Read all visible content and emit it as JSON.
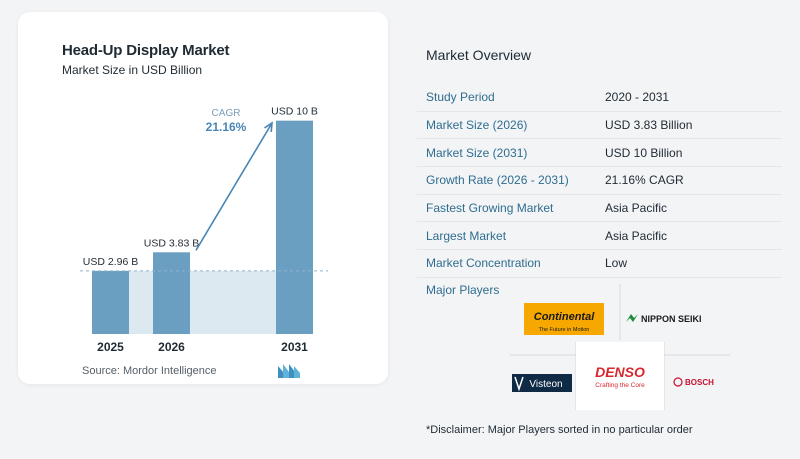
{
  "chart": {
    "title": "Head-Up Display Market",
    "subtitle": "Market Size in USD Billion",
    "cagr_label": "CAGR",
    "cagr_value": "21.16%",
    "source": "Source:  Mordor Intelligence",
    "colors": {
      "bar": "#6a9fc2",
      "bar_top": "#5a8fb5",
      "shade": "#dde9f1",
      "accent": "#4a86b5",
      "text": "#1f2a33"
    }
  },
  "chart_data": {
    "type": "bar",
    "title": "Head-Up Display Market",
    "subtitle": "Market Size in USD Billion",
    "categories": [
      "2025",
      "2026",
      "2031"
    ],
    "values": [
      2.96,
      3.83,
      10
    ],
    "data_labels": [
      "USD 2.96 B",
      "USD 3.83 B",
      "USD 10 B"
    ],
    "ylim": [
      0,
      10.5
    ],
    "grid": false,
    "annotation": {
      "label": "CAGR",
      "value": "21.16%"
    }
  },
  "overview": {
    "title": "Market Overview",
    "rows": [
      {
        "label": "Study Period",
        "value": "2020 - 2031"
      },
      {
        "label": "Market Size (2026)",
        "value": "USD 3.83 Billion"
      },
      {
        "label": "Market Size (2031)",
        "value": "USD 10 Billion"
      },
      {
        "label": "Growth Rate (2026 - 2031)",
        "value": "21.16% CAGR"
      },
      {
        "label": "Fastest Growing Market",
        "value": "Asia Pacific"
      },
      {
        "label": "Largest Market",
        "value": "Asia Pacific"
      },
      {
        "label": "Market Concentration",
        "value": "Low"
      }
    ]
  },
  "players": {
    "label": "Major Players",
    "logos": [
      "Continental The Future in Motion",
      "NIPPON SEIKI",
      "Visteon",
      "DENSO Crafting the Core",
      "BOSCH"
    ]
  },
  "disclaimer": "*Disclaimer: Major Players sorted in no particular order"
}
